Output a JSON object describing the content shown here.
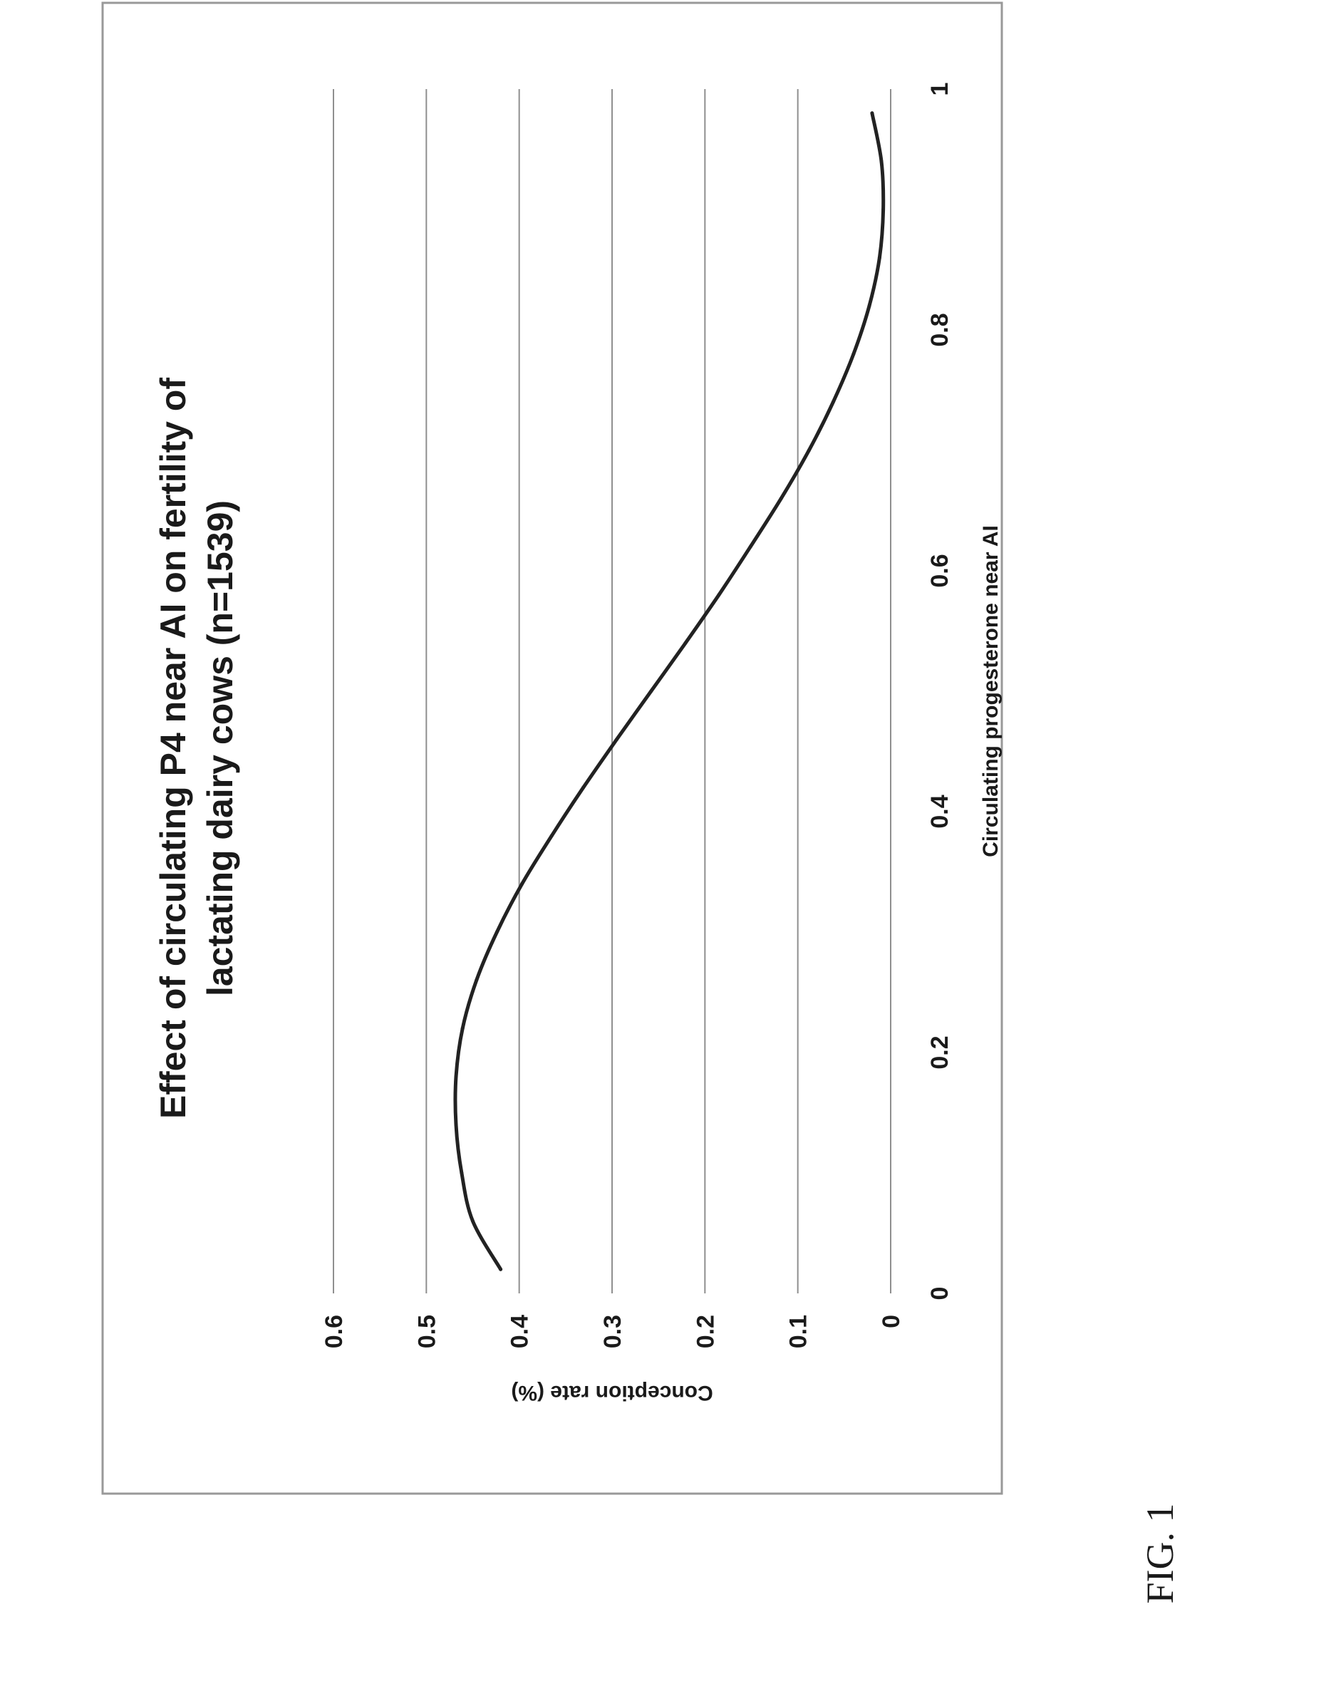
{
  "figure_label": "FIG. 1",
  "chart_data": {
    "type": "line",
    "title_lines": [
      "Effect of circulating P4 near AI on fertility of",
      "lactating dairy cows (n=1539)"
    ],
    "xlabel": "Circulating progesterone near AI",
    "ylabel": "Conception rate (%)",
    "xlim": [
      0,
      1
    ],
    "ylim": [
      0,
      0.6
    ],
    "x_ticks": [
      "0",
      "0.2",
      "0.4",
      "0.6",
      "0.8",
      "1"
    ],
    "y_ticks": [
      "0",
      "0.1",
      "0.2",
      "0.3",
      "0.4",
      "0.5",
      "0.6"
    ],
    "grid": "horizontal",
    "series": [
      {
        "color": "#222222",
        "x": [
          0.02,
          0.06,
          0.1,
          0.14,
          0.18,
          0.22,
          0.26,
          0.3,
          0.34,
          0.38,
          0.42,
          0.46,
          0.5,
          0.54,
          0.58,
          0.62,
          0.66,
          0.7,
          0.74,
          0.78,
          0.82,
          0.86,
          0.9,
          0.94,
          0.98
        ],
        "y": [
          0.42,
          0.45,
          0.462,
          0.468,
          0.468,
          0.461,
          0.446,
          0.424,
          0.397,
          0.365,
          0.331,
          0.295,
          0.258,
          0.221,
          0.185,
          0.151,
          0.118,
          0.088,
          0.062,
          0.04,
          0.023,
          0.012,
          0.008,
          0.01,
          0.02
        ]
      }
    ]
  }
}
